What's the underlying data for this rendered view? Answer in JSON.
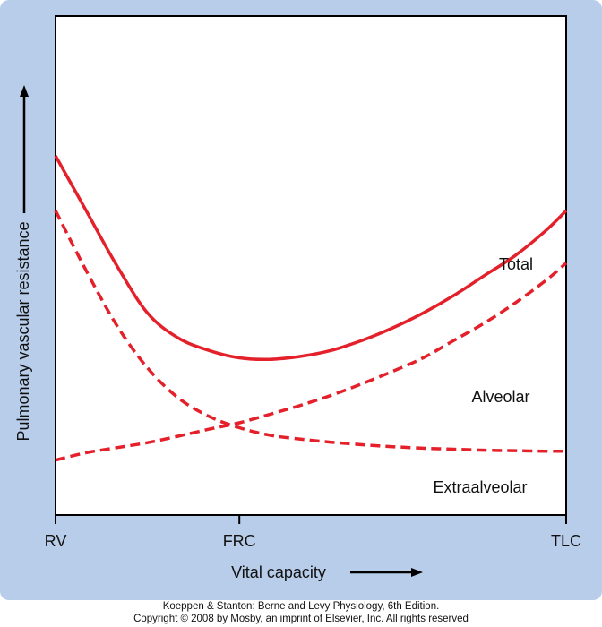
{
  "chart_data": {
    "type": "line",
    "title": "",
    "xlabel": "Vital capacity",
    "ylabel": "Pulmonary vascular resistance",
    "x_ticks": [
      "RV",
      "FRC",
      "TLC"
    ],
    "x_tick_positions": [
      0,
      36,
      100
    ],
    "xlim": [
      0,
      100
    ],
    "ylim": [
      0,
      100
    ],
    "grid": false,
    "series": [
      {
        "name": "Total",
        "style": "solid",
        "color": "#e4202a",
        "x": [
          0,
          6,
          12,
          18,
          24,
          30,
          36,
          42,
          48,
          54,
          60,
          66,
          72,
          78,
          84,
          90,
          96,
          100
        ],
        "y": [
          72,
          61,
          50,
          40.5,
          35.5,
          33,
          31.5,
          31.2,
          31.8,
          33,
          35,
          37.5,
          40.5,
          44,
          48,
          52,
          57,
          61
        ]
      },
      {
        "name": "Alveolar",
        "style": "dashed",
        "color": "#e4202a",
        "x": [
          0,
          6,
          12,
          18,
          24,
          30,
          36,
          42,
          48,
          54,
          60,
          66,
          72,
          78,
          84,
          90,
          96,
          100
        ],
        "y": [
          11,
          12.5,
          13.5,
          14.5,
          15.8,
          17.2,
          18.5,
          20.2,
          22,
          24,
          26.3,
          28.8,
          31.5,
          35,
          38.5,
          42.5,
          47,
          50.5
        ]
      },
      {
        "name": "Extraalveolar",
        "style": "dashed",
        "color": "#e4202a",
        "x": [
          0,
          6,
          12,
          18,
          24,
          30,
          36,
          42,
          48,
          54,
          60,
          66,
          72,
          78,
          84,
          90,
          96,
          100
        ],
        "y": [
          61,
          49,
          38,
          29.5,
          23.5,
          19.8,
          17.5,
          16,
          15.2,
          14.6,
          14.1,
          13.7,
          13.4,
          13.2,
          13,
          12.9,
          12.8,
          12.8
        ]
      }
    ],
    "series_labels": [
      "Total",
      "Alveolar",
      "Extraalveolar"
    ]
  },
  "footer": {
    "line1": "Koeppen & Stanton: Berne and Levy Physiology, 6th Edition.",
    "line2": "Copyright © 2008 by Mosby, an imprint of Elsevier, Inc. All rights reserved"
  }
}
